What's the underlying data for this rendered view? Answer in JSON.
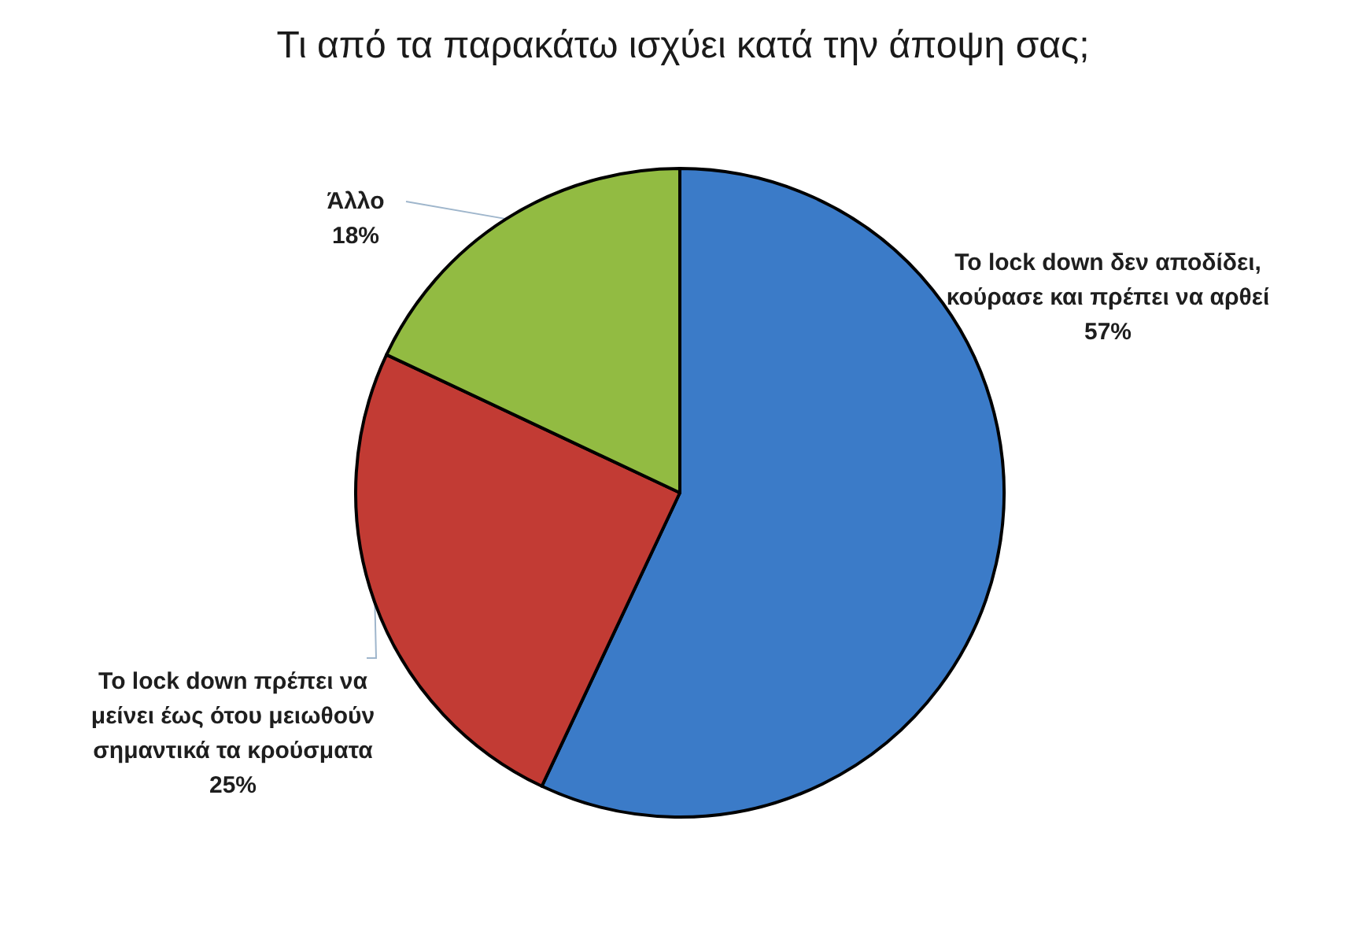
{
  "chart_data": {
    "type": "pie",
    "title": "Τι από τα παρακάτω ισχύει κατά την άποψη σας;",
    "categories": [
      "To lock down δεν αποδίδει, κούρασε και πρέπει να αρθεί",
      "To lock down πρέπει να μείνει έως ότου μειωθούν σημαντικά τα κρούσματα",
      "Άλλο"
    ],
    "values": [
      57,
      25,
      18
    ],
    "colors": [
      "#3b7bc8",
      "#c23b34",
      "#92bb42"
    ],
    "value_labels": [
      "57%",
      "25%",
      "18%"
    ]
  }
}
